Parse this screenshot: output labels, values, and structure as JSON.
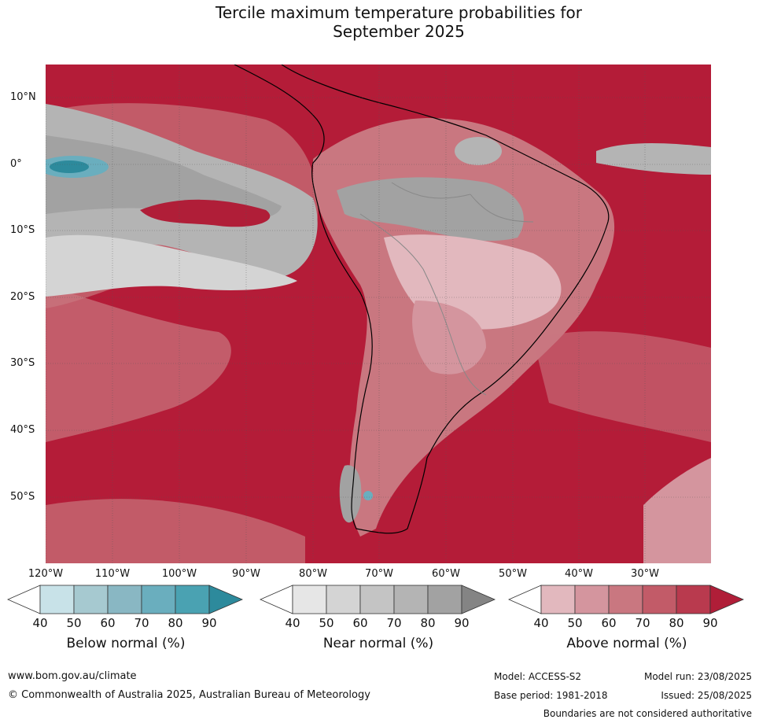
{
  "title": {
    "line1": "Tercile maximum temperature probabilities for",
    "line2": "September 2025"
  },
  "map": {
    "lat_labels": [
      "10°N",
      "0°",
      "10°S",
      "20°S",
      "30°S",
      "40°S",
      "50°S"
    ],
    "lon_labels": [
      "120°W",
      "110°W",
      "100°W",
      "90°W",
      "80°W",
      "70°W",
      "60°W",
      "50°W",
      "40°W",
      "30°W"
    ],
    "ocean_color": "#b41c38"
  },
  "colorbars": [
    {
      "title": "Below normal (%)",
      "ticks": [
        "40",
        "50",
        "60",
        "70",
        "80",
        "90"
      ],
      "colors": [
        "#ffffff",
        "#c8e2e8",
        "#a6c9d0",
        "#89b7c3",
        "#6aaebe",
        "#4aa2b2",
        "#2d8a9c"
      ]
    },
    {
      "title": "Near normal (%)",
      "ticks": [
        "40",
        "50",
        "60",
        "70",
        "80",
        "90"
      ],
      "colors": [
        "#ffffff",
        "#e6e6e6",
        "#d4d4d4",
        "#c4c4c4",
        "#b4b4b4",
        "#a2a2a2",
        "#848484"
      ]
    },
    {
      "title": "Above normal (%)",
      "ticks": [
        "40",
        "50",
        "60",
        "70",
        "80",
        "90"
      ],
      "colors": [
        "#ffffff",
        "#e2b8be",
        "#d4959e",
        "#c97780",
        "#c25b68",
        "#b93a4e",
        "#b01e38"
      ]
    }
  ],
  "footer": {
    "website": "www.bom.gov.au/climate",
    "copyright": "© Commonwealth of Australia 2025, Australian Bureau of Meteorology",
    "model": "Model: ACCESS-S2",
    "base_period": "Base period: 1981-2018",
    "model_run": "Model run: 23/08/2025",
    "issued": "Issued: 25/08/2025",
    "disclaimer": "Boundaries are not considered authoritative"
  }
}
